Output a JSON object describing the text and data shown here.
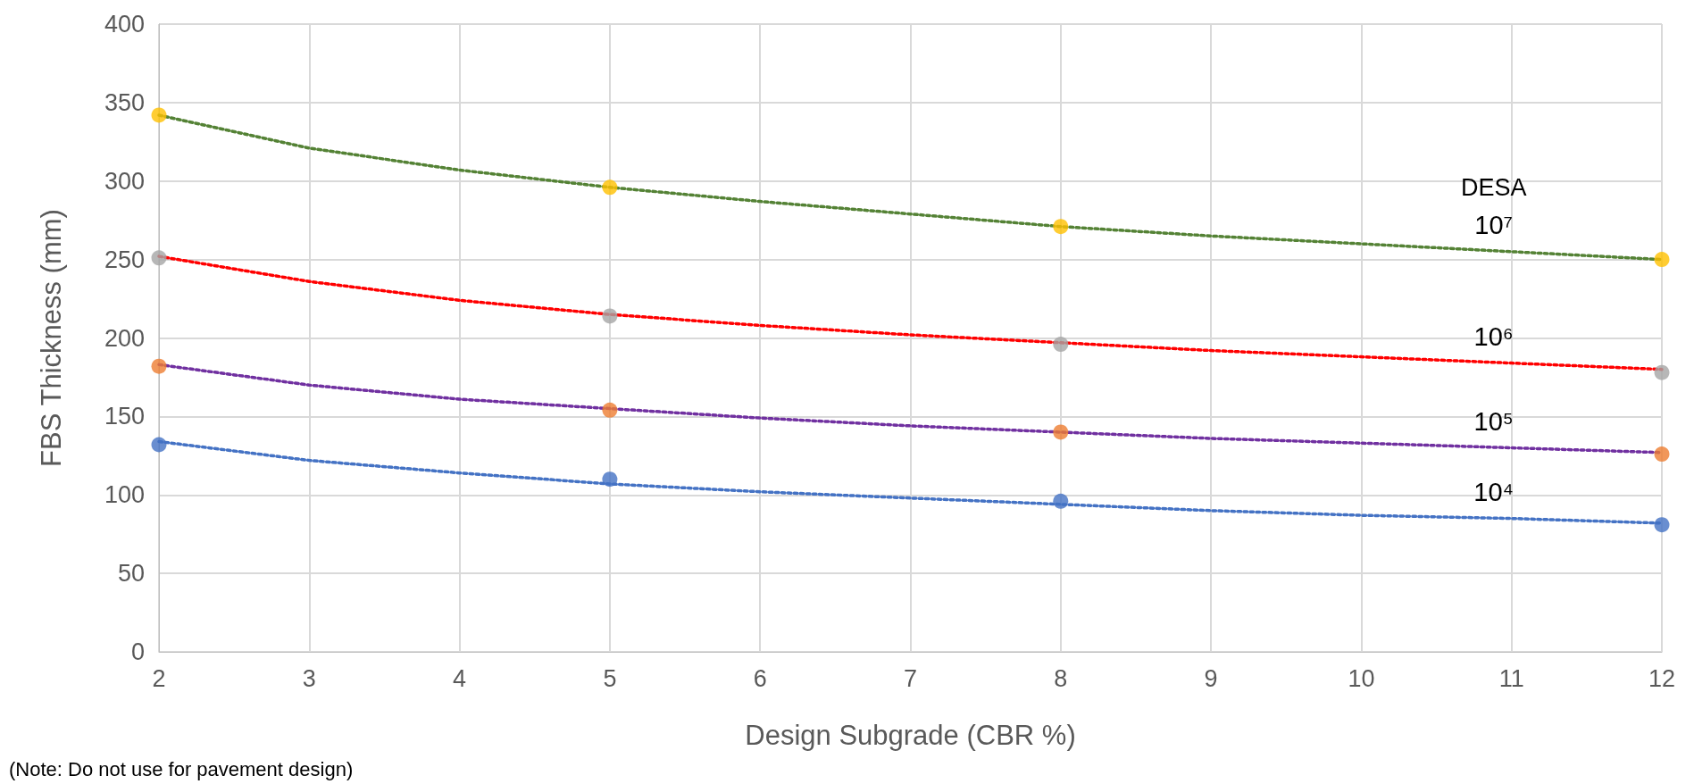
{
  "chart_data": {
    "type": "scatter",
    "xlabel": "Design Subgrade (CBR %)",
    "ylabel": "FBS Thickness (mm)",
    "xlim": [
      2,
      12
    ],
    "xticks": [
      2,
      3,
      4,
      5,
      6,
      7,
      8,
      9,
      10,
      11,
      12
    ],
    "ylim": [
      0,
      400
    ],
    "yticks": [
      0,
      50,
      100,
      150,
      200,
      250,
      300,
      350,
      400
    ],
    "grid": true,
    "legend": false,
    "marker": "circle",
    "legend_title": "DESA",
    "series": [
      {
        "type": "line",
        "name": "10⁷",
        "color": "#548235",
        "line_style": "dotted",
        "marker": "none",
        "x": [
          2,
          3,
          4,
          5,
          6,
          7,
          8,
          9,
          10,
          11,
          12
        ],
        "values": [
          342,
          321,
          307,
          296,
          287,
          279,
          271,
          265,
          260,
          255,
          250
        ]
      },
      {
        "type": "line",
        "name": "10⁶",
        "color": "#ff0000",
        "line_style": "dotted",
        "marker": "none",
        "x": [
          2,
          3,
          4,
          5,
          6,
          7,
          8,
          9,
          10,
          11,
          12
        ],
        "values": [
          252,
          236,
          224,
          215,
          208,
          202,
          197,
          192,
          188,
          184,
          180
        ]
      },
      {
        "type": "line",
        "name": "10⁵",
        "color": "#7030a0",
        "line_style": "dotted",
        "marker": "none",
        "x": [
          2,
          3,
          4,
          5,
          6,
          7,
          8,
          9,
          10,
          11,
          12
        ],
        "values": [
          183,
          170,
          161,
          155,
          149,
          144,
          140,
          136,
          133,
          130,
          127
        ]
      },
      {
        "type": "line",
        "name": "10⁴",
        "color": "#4472c4",
        "line_style": "dotted",
        "marker": "none",
        "x": [
          2,
          3,
          4,
          5,
          6,
          7,
          8,
          9,
          10,
          11,
          12
        ],
        "values": [
          134,
          122,
          114,
          107,
          102,
          98,
          94,
          90,
          87,
          85,
          82
        ]
      },
      {
        "color": "#ffc000",
        "x": [
          2,
          5,
          8,
          12
        ],
        "values": [
          342,
          296,
          271,
          250
        ]
      },
      {
        "color": "#a5a5a5",
        "x": [
          2,
          5,
          8,
          12
        ],
        "values": [
          251,
          214,
          196,
          178
        ]
      },
      {
        "color": "#ed7d31",
        "x": [
          2,
          5,
          8,
          12
        ],
        "values": [
          182,
          154,
          140,
          126
        ]
      },
      {
        "color": "#4472c4",
        "x": [
          2,
          5,
          8,
          12
        ],
        "values": [
          132,
          110,
          96,
          81
        ]
      }
    ],
    "annotations": [
      "(Note: Do not use for pavement design)"
    ]
  }
}
